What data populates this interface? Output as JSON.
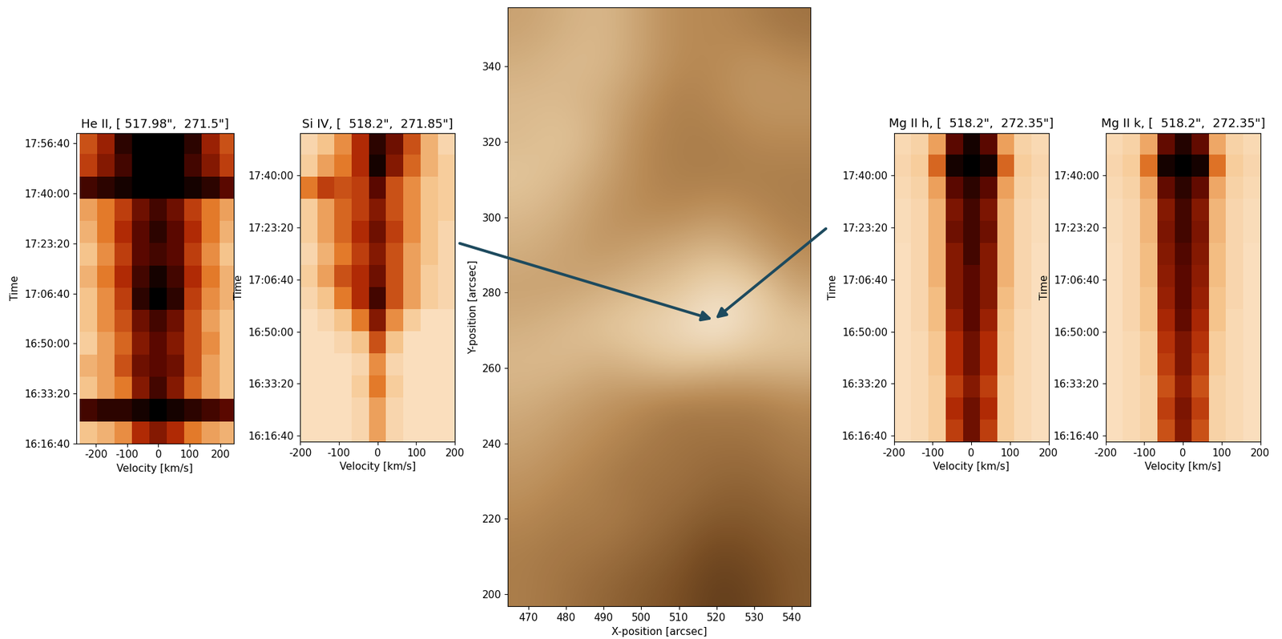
{
  "chart_data": [
    {
      "type": "heatmap",
      "title": "He II, [ 517.98\",  271.5\"]",
      "x_label": "Velocity [km/s]",
      "y_label": "Time",
      "xlim": [
        -263,
        242
      ],
      "xticks": [
        -200,
        -100,
        0,
        100,
        200
      ],
      "ylim": [
        58600,
        64810
      ],
      "yticks": [
        {
          "value": 58600,
          "label": "16:16:40"
        },
        {
          "value": 59600,
          "label": "16:33:20"
        },
        {
          "value": 60600,
          "label": "16:50:00"
        },
        {
          "value": 61600,
          "label": "17:06:40"
        },
        {
          "value": 62600,
          "label": "17:23:20"
        },
        {
          "value": 63600,
          "label": "17:40:00"
        },
        {
          "value": 64600,
          "label": "17:56:40"
        }
      ],
      "velocity_edges": [
        -252,
        -196,
        -140,
        -84,
        -28,
        28,
        84,
        140,
        196,
        252
      ],
      "time_edges": [
        58600,
        59045,
        59490,
        59935,
        60380,
        60825,
        61270,
        61715,
        62160,
        62605,
        63050,
        63495,
        63940,
        64385,
        64830
      ],
      "cell_range": [
        0,
        1
      ],
      "cells": [
        [
          0.2,
          0.25,
          0.35,
          0.6,
          0.7,
          0.6,
          0.4,
          0.3,
          0.25
        ],
        [
          0.85,
          0.9,
          0.9,
          0.95,
          1,
          0.95,
          0.9,
          0.85,
          0.8
        ],
        [
          0.2,
          0.3,
          0.4,
          0.7,
          0.85,
          0.7,
          0.45,
          0.3,
          0.2
        ],
        [
          0.25,
          0.3,
          0.5,
          0.75,
          0.8,
          0.75,
          0.5,
          0.3,
          0.2
        ],
        [
          0.15,
          0.3,
          0.45,
          0.7,
          0.8,
          0.7,
          0.5,
          0.35,
          0.2
        ],
        [
          0.2,
          0.35,
          0.5,
          0.75,
          0.85,
          0.75,
          0.5,
          0.3,
          0.2
        ],
        [
          0.2,
          0.35,
          0.55,
          0.9,
          1,
          0.9,
          0.55,
          0.35,
          0.25
        ],
        [
          0.25,
          0.4,
          0.6,
          0.85,
          0.95,
          0.85,
          0.6,
          0.4,
          0.25
        ],
        [
          0.2,
          0.35,
          0.55,
          0.8,
          0.85,
          0.8,
          0.55,
          0.35,
          0.2
        ],
        [
          0.25,
          0.4,
          0.6,
          0.8,
          0.9,
          0.8,
          0.6,
          0.4,
          0.25
        ],
        [
          0.3,
          0.4,
          0.55,
          0.75,
          0.85,
          0.75,
          0.55,
          0.4,
          0.3
        ],
        [
          0.85,
          0.9,
          0.95,
          1,
          1,
          1,
          0.95,
          0.9,
          0.8
        ],
        [
          0.55,
          0.7,
          0.85,
          1,
          1,
          1,
          0.85,
          0.7,
          0.55
        ],
        [
          0.5,
          0.65,
          0.9,
          1,
          1,
          1,
          0.9,
          0.65,
          0.5
        ]
      ]
    },
    {
      "type": "heatmap",
      "title": "Si IV, [  518.2\",  271.85\"]",
      "x_label": "Velocity [km/s]",
      "y_label": "Time",
      "xlim": [
        -200,
        200
      ],
      "xticks": [
        -200,
        -100,
        0,
        100,
        200
      ],
      "ylim": [
        58490,
        64410
      ],
      "yticks": [
        {
          "value": 58600,
          "label": "16:16:40"
        },
        {
          "value": 59600,
          "label": "16:33:20"
        },
        {
          "value": 60600,
          "label": "16:50:00"
        },
        {
          "value": 61600,
          "label": "17:06:40"
        },
        {
          "value": 62600,
          "label": "17:23:20"
        },
        {
          "value": 63600,
          "label": "17:40:00"
        }
      ],
      "velocity_edges": [
        -200,
        -156,
        -111,
        -67,
        -22,
        22,
        67,
        111,
        156,
        200
      ],
      "time_edges": [
        58490,
        58913,
        59336,
        59759,
        60182,
        60605,
        61028,
        61451,
        61874,
        62297,
        62720,
        63143,
        63566,
        63989,
        64412
      ],
      "cell_range": [
        0,
        1
      ],
      "cells": [
        [
          0.05,
          0.05,
          0.05,
          0.1,
          0.3,
          0.1,
          0.05,
          0.05,
          0.05
        ],
        [
          0.05,
          0.05,
          0.05,
          0.1,
          0.3,
          0.1,
          0.05,
          0.05,
          0.05
        ],
        [
          0.05,
          0.05,
          0.05,
          0.15,
          0.4,
          0.15,
          0.05,
          0.05,
          0.05
        ],
        [
          0.05,
          0.05,
          0.05,
          0.1,
          0.35,
          0.1,
          0.05,
          0.05,
          0.05
        ],
        [
          0.05,
          0.05,
          0.1,
          0.2,
          0.5,
          0.2,
          0.05,
          0.05,
          0.05
        ],
        [
          0.05,
          0.1,
          0.2,
          0.4,
          0.7,
          0.35,
          0.15,
          0.05,
          0.05
        ],
        [
          0.1,
          0.2,
          0.4,
          0.6,
          0.85,
          0.5,
          0.3,
          0.15,
          0.1
        ],
        [
          0.15,
          0.3,
          0.5,
          0.6,
          0.75,
          0.5,
          0.3,
          0.15,
          0.1
        ],
        [
          0.1,
          0.25,
          0.4,
          0.55,
          0.7,
          0.5,
          0.3,
          0.2,
          0.1
        ],
        [
          0.15,
          0.3,
          0.45,
          0.6,
          0.75,
          0.55,
          0.35,
          0.2,
          0.1
        ],
        [
          0.15,
          0.3,
          0.45,
          0.55,
          0.7,
          0.5,
          0.35,
          0.2,
          0.15
        ],
        [
          0.4,
          0.55,
          0.5,
          0.55,
          0.8,
          0.5,
          0.35,
          0.2,
          0.15
        ],
        [
          0.15,
          0.3,
          0.4,
          0.6,
          0.95,
          0.7,
          0.45,
          0.25,
          0.15
        ],
        [
          0.1,
          0.2,
          0.35,
          0.6,
          0.9,
          0.75,
          0.5,
          0.25,
          0.1
        ]
      ]
    },
    {
      "type": "image",
      "x_label": "X-position [arcsec]",
      "y_label": "Y-position [arcsec]",
      "xlim": [
        464.6,
        545
      ],
      "xticks": [
        470,
        480,
        490,
        500,
        510,
        520,
        530,
        540
      ],
      "ylim": [
        196.7,
        355.8
      ],
      "yticks": [
        200,
        220,
        240,
        260,
        280,
        300,
        320,
        340
      ],
      "x_range": [
        464,
        546
      ],
      "y_range": [
        196,
        356
      ],
      "cell_range": [
        0,
        1
      ],
      "cells": [
        [
          0.45,
          0.4,
          0.35,
          0.3,
          0.25,
          0.15,
          0.2,
          0.3
        ],
        [
          0.45,
          0.42,
          0.4,
          0.35,
          0.3,
          0.2,
          0.25,
          0.3
        ],
        [
          0.5,
          0.45,
          0.45,
          0.4,
          0.35,
          0.3,
          0.3,
          0.35
        ],
        [
          0.55,
          0.5,
          0.45,
          0.4,
          0.4,
          0.35,
          0.35,
          0.4
        ],
        [
          0.6,
          0.55,
          0.5,
          0.45,
          0.4,
          0.4,
          0.4,
          0.45
        ],
        [
          0.65,
          0.6,
          0.55,
          0.5,
          0.45,
          0.45,
          0.45,
          0.5
        ],
        [
          0.7,
          0.7,
          0.65,
          0.7,
          0.75,
          0.7,
          0.7,
          0.7
        ],
        [
          0.65,
          0.7,
          0.75,
          0.8,
          0.85,
          0.95,
          0.8,
          0.75
        ],
        [
          0.6,
          0.6,
          0.65,
          0.7,
          0.75,
          0.85,
          0.8,
          0.6
        ],
        [
          0.65,
          0.6,
          0.55,
          0.6,
          0.65,
          0.7,
          0.6,
          0.5
        ],
        [
          0.7,
          0.65,
          0.55,
          0.5,
          0.5,
          0.55,
          0.5,
          0.45
        ],
        [
          0.75,
          0.7,
          0.6,
          0.5,
          0.45,
          0.45,
          0.45,
          0.45
        ],
        [
          0.7,
          0.75,
          0.65,
          0.5,
          0.45,
          0.45,
          0.5,
          0.5
        ],
        [
          0.7,
          0.7,
          0.65,
          0.55,
          0.45,
          0.5,
          0.55,
          0.55
        ],
        [
          0.65,
          0.7,
          0.7,
          0.6,
          0.5,
          0.5,
          0.55,
          0.5
        ],
        [
          0.6,
          0.65,
          0.7,
          0.6,
          0.5,
          0.5,
          0.45,
          0.4
        ]
      ]
    },
    {
      "type": "heatmap",
      "title": "Mg II h, [  518.2\",  272.35\"]",
      "x_label": "Velocity [km/s]",
      "y_label": "Time",
      "xlim": [
        -200,
        200
      ],
      "xticks": [
        -200,
        -100,
        0,
        100,
        200
      ],
      "ylim": [
        58490,
        64410
      ],
      "yticks": [
        {
          "value": 58600,
          "label": "16:16:40"
        },
        {
          "value": 59600,
          "label": "16:33:20"
        },
        {
          "value": 60600,
          "label": "16:50:00"
        },
        {
          "value": 61600,
          "label": "17:06:40"
        },
        {
          "value": 62600,
          "label": "17:23:20"
        },
        {
          "value": 63600,
          "label": "17:40:00"
        }
      ],
      "velocity_edges": [
        -200,
        -156,
        -111,
        -67,
        -22,
        22,
        67,
        111,
        156,
        200
      ],
      "time_edges": [
        58490,
        58913,
        59336,
        59759,
        60182,
        60605,
        61028,
        61451,
        61874,
        62297,
        62720,
        63143,
        63566,
        63989,
        64412
      ],
      "cell_range": [
        0,
        1
      ],
      "cells": [
        [
          0.05,
          0.08,
          0.15,
          0.55,
          0.75,
          0.55,
          0.15,
          0.08,
          0.05
        ],
        [
          0.05,
          0.08,
          0.15,
          0.6,
          0.75,
          0.6,
          0.15,
          0.08,
          0.05
        ],
        [
          0.05,
          0.08,
          0.15,
          0.55,
          0.7,
          0.55,
          0.15,
          0.08,
          0.05
        ],
        [
          0.05,
          0.08,
          0.18,
          0.6,
          0.75,
          0.6,
          0.18,
          0.08,
          0.05
        ],
        [
          0.05,
          0.08,
          0.18,
          0.6,
          0.75,
          0.6,
          0.18,
          0.08,
          0.05
        ],
        [
          0.05,
          0.1,
          0.22,
          0.65,
          0.8,
          0.65,
          0.2,
          0.08,
          0.05
        ],
        [
          0.05,
          0.1,
          0.22,
          0.7,
          0.8,
          0.7,
          0.22,
          0.1,
          0.05
        ],
        [
          0.05,
          0.1,
          0.25,
          0.7,
          0.8,
          0.7,
          0.25,
          0.1,
          0.05
        ],
        [
          0.05,
          0.1,
          0.25,
          0.7,
          0.85,
          0.7,
          0.25,
          0.1,
          0.05
        ],
        [
          0.06,
          0.1,
          0.25,
          0.75,
          0.85,
          0.75,
          0.25,
          0.1,
          0.06
        ],
        [
          0.06,
          0.1,
          0.25,
          0.72,
          0.85,
          0.72,
          0.25,
          0.1,
          0.06
        ],
        [
          0.08,
          0.12,
          0.3,
          0.8,
          0.9,
          0.8,
          0.3,
          0.12,
          0.08
        ],
        [
          0.1,
          0.15,
          0.45,
          0.95,
          1,
          0.95,
          0.45,
          0.15,
          0.1
        ],
        [
          0.08,
          0.12,
          0.3,
          0.8,
          0.95,
          0.8,
          0.3,
          0.12,
          0.08
        ]
      ]
    },
    {
      "type": "heatmap",
      "title": "Mg II k, [  518.2\",  272.35\"]",
      "x_label": "Velocity [km/s]",
      "y_label": "Time",
      "xlim": [
        -200,
        200
      ],
      "xticks": [
        -200,
        -100,
        0,
        100,
        200
      ],
      "ylim": [
        58490,
        64410
      ],
      "yticks": [
        {
          "value": 58600,
          "label": "16:16:40"
        },
        {
          "value": 59600,
          "label": "16:33:20"
        },
        {
          "value": 60600,
          "label": "16:50:00"
        },
        {
          "value": 61600,
          "label": "17:06:40"
        },
        {
          "value": 62600,
          "label": "17:23:20"
        },
        {
          "value": 63600,
          "label": "17:40:00"
        }
      ],
      "velocity_edges": [
        -200,
        -156,
        -111,
        -67,
        -22,
        22,
        67,
        111,
        156,
        200
      ],
      "time_edges": [
        58490,
        58913,
        59336,
        59759,
        60182,
        60605,
        61028,
        61451,
        61874,
        62297,
        62720,
        63143,
        63566,
        63989,
        64412
      ],
      "cell_range": [
        0,
        1
      ],
      "cells": [
        [
          0.05,
          0.08,
          0.12,
          0.5,
          0.7,
          0.5,
          0.12,
          0.08,
          0.05
        ],
        [
          0.05,
          0.08,
          0.12,
          0.55,
          0.72,
          0.55,
          0.12,
          0.08,
          0.05
        ],
        [
          0.05,
          0.08,
          0.12,
          0.5,
          0.68,
          0.5,
          0.12,
          0.08,
          0.05
        ],
        [
          0.05,
          0.08,
          0.15,
          0.55,
          0.72,
          0.55,
          0.15,
          0.08,
          0.05
        ],
        [
          0.05,
          0.08,
          0.15,
          0.58,
          0.72,
          0.58,
          0.15,
          0.08,
          0.05
        ],
        [
          0.05,
          0.1,
          0.2,
          0.62,
          0.78,
          0.62,
          0.2,
          0.08,
          0.05
        ],
        [
          0.05,
          0.1,
          0.2,
          0.66,
          0.8,
          0.66,
          0.2,
          0.1,
          0.05
        ],
        [
          0.05,
          0.1,
          0.22,
          0.68,
          0.8,
          0.68,
          0.22,
          0.1,
          0.05
        ],
        [
          0.05,
          0.1,
          0.22,
          0.7,
          0.82,
          0.7,
          0.22,
          0.1,
          0.05
        ],
        [
          0.06,
          0.1,
          0.24,
          0.72,
          0.85,
          0.72,
          0.24,
          0.1,
          0.06
        ],
        [
          0.06,
          0.1,
          0.24,
          0.7,
          0.85,
          0.7,
          0.24,
          0.1,
          0.06
        ],
        [
          0.08,
          0.12,
          0.28,
          0.78,
          0.9,
          0.78,
          0.28,
          0.12,
          0.08
        ],
        [
          0.1,
          0.15,
          0.42,
          0.95,
          1,
          0.95,
          0.42,
          0.15,
          0.1
        ],
        [
          0.08,
          0.12,
          0.28,
          0.78,
          0.92,
          0.78,
          0.28,
          0.12,
          0.08
        ]
      ]
    }
  ]
}
